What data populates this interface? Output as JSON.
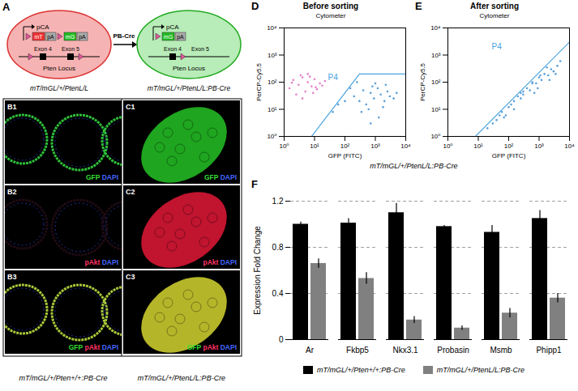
{
  "figure": {
    "panel_A": {
      "letter": "A",
      "left": {
        "promoter": "pCA",
        "cassette": [
          "mT",
          "pA"
        ],
        "reporter": [
          "mG",
          "pA"
        ],
        "exons": [
          "Exon 4",
          "Exon 5"
        ],
        "locus": "Pten Locus",
        "caption": "mT/mGL/+/PtenL/L"
      },
      "arrow": "PB-Cre",
      "right": {
        "promoter": "pCA",
        "reporter": [
          "mG",
          "pA"
        ],
        "exons": [
          "Exon 4",
          "Exon 5"
        ],
        "locus": "Pten Locus",
        "caption": "mT/mGL/+/PtenL/L:PB-Cre"
      }
    },
    "images": [
      {
        "letter": "B1",
        "labels": [
          {
            "text": "GFP",
            "color": "#33dd33"
          },
          {
            "text": "DAPI",
            "color": "#4466ff"
          }
        ]
      },
      {
        "letter": "B2",
        "labels": [
          {
            "text": "pAkt",
            "color": "#ff3366"
          },
          {
            "text": "DAPI",
            "color": "#4466ff"
          }
        ]
      },
      {
        "letter": "B3",
        "labels": [
          {
            "text": "GFP",
            "color": "#33dd33"
          },
          {
            "text": "pAkt",
            "color": "#ff3366"
          },
          {
            "text": "DAPI",
            "color": "#4466ff"
          }
        ]
      },
      {
        "letter": "C1",
        "labels": [
          {
            "text": "GFP",
            "color": "#33dd33"
          },
          {
            "text": "DAPI",
            "color": "#4466ff"
          }
        ]
      },
      {
        "letter": "C2",
        "labels": [
          {
            "text": "pAkt",
            "color": "#ff3366"
          },
          {
            "text": "DAPI",
            "color": "#4466ff"
          }
        ]
      },
      {
        "letter": "C3",
        "labels": [
          {
            "text": "GFP",
            "color": "#33dd33"
          },
          {
            "text": "pAkt",
            "color": "#ff3366"
          },
          {
            "text": "DAPI",
            "color": "#4466ff"
          }
        ]
      }
    ],
    "captions": {
      "B": "mT/mGL/+/Pten+/+:PB-Cre",
      "C": "mT/mGL/+/PtenL/L:PB-Cre",
      "DE": "mT/mGL/+/PtenL/L:PB-Cre"
    }
  },
  "chart_data": [
    {
      "type": "scatter",
      "panel": "D",
      "title": "Before sorting",
      "subtitle": "Cytometer",
      "x_label": "GFP (FITC)",
      "y_label": "PerCP-Cy5.5",
      "log": true,
      "xlim": [
        1,
        10000
      ],
      "ylim": [
        1,
        10000
      ],
      "xticks": [
        {
          "value": 1,
          "label": "10⁰"
        },
        {
          "value": 10,
          "label": "10¹"
        },
        {
          "value": 100,
          "label": "10²"
        },
        {
          "value": 1000,
          "label": "10³"
        },
        {
          "value": 10000,
          "label": "10⁴"
        }
      ],
      "yticks": [
        {
          "value": 1,
          "label": "10⁰"
        },
        {
          "value": 10,
          "label": "10¹"
        },
        {
          "value": 100,
          "label": "10²"
        },
        {
          "value": 1000,
          "label": "10³"
        },
        {
          "value": 10000,
          "label": "10⁴"
        }
      ],
      "series": [
        {
          "color": "#e57fc9",
          "x": [
            1.5,
            2,
            3,
            4,
            5,
            6,
            8,
            10,
            12,
            15,
            2.5,
            3.5,
            7,
            9,
            18,
            22,
            4,
            6,
            1.8,
            11
          ],
          "y": [
            60,
            120,
            80,
            150,
            45,
            100,
            70,
            130,
            55,
            90,
            35,
            180,
            160,
            40,
            75,
            110,
            25,
            200,
            95,
            65
          ]
        },
        {
          "color": "#5a9fd8",
          "x": [
            200,
            300,
            400,
            500,
            700,
            900,
            1200,
            1500,
            2000,
            2500,
            3000,
            4000,
            350,
            600,
            800,
            1000,
            1800,
            250,
            150,
            100,
            60,
            40,
            5000,
            1300,
            700,
            2200
          ],
          "y": [
            30,
            20,
            50,
            15,
            40,
            25,
            60,
            35,
            20,
            45,
            30,
            25,
            8,
            10,
            70,
            90,
            12,
            100,
            60,
            20,
            15,
            8,
            40,
            5,
            3,
            80
          ]
        }
      ],
      "gate": {
        "label": "P4",
        "color": "#4aa3df",
        "label_at": [
          40,
          150
        ],
        "x": [
          8,
          300,
          10000
        ],
        "y": [
          1,
          200,
          200
        ]
      }
    },
    {
      "type": "scatter",
      "panel": "E",
      "title": "After sorting",
      "subtitle": "Cytometer",
      "x_label": "GFP (FITC)",
      "y_label": "PerCP-Cy5.5",
      "log": true,
      "xlim": [
        1,
        10000
      ],
      "ylim": [
        1,
        10000
      ],
      "xticks": [
        {
          "value": 1,
          "label": "10⁰"
        },
        {
          "value": 10,
          "label": "10¹"
        },
        {
          "value": 100,
          "label": "10²"
        },
        {
          "value": 1000,
          "label": "10³"
        },
        {
          "value": 10000,
          "label": "10⁴"
        }
      ],
      "yticks": [
        {
          "value": 1,
          "label": "10⁰"
        },
        {
          "value": 10,
          "label": "10¹"
        },
        {
          "value": 100,
          "label": "10²"
        },
        {
          "value": 1000,
          "label": "10³"
        },
        {
          "value": 10000,
          "label": "10⁴"
        }
      ],
      "series": [
        {
          "color": "#5a9fd8",
          "x": [
            20,
            30,
            40,
            50,
            60,
            70,
            80,
            100,
            120,
            150,
            150,
            200,
            250,
            250,
            300,
            300,
            400,
            500,
            600,
            600,
            700,
            800,
            900,
            1000,
            1100,
            1200,
            1500,
            1800,
            2000,
            2200,
            2500,
            3000,
            3500,
            4000,
            5000
          ],
          "y": [
            2,
            3,
            4,
            6,
            8,
            5,
            6,
            12,
            15,
            20,
            10,
            30,
            40,
            25,
            35,
            45,
            60,
            50,
            100,
            90,
            40,
            90,
            60,
            150,
            180,
            120,
            200,
            350,
            180,
            120,
            300,
            250,
            200,
            400,
            600
          ]
        }
      ],
      "gate": {
        "label": "P4",
        "color": "#4aa3df",
        "label_at": [
          40,
          2000
        ],
        "x": [
          8,
          10000
        ],
        "y": [
          1,
          3000
        ]
      }
    },
    {
      "type": "bar",
      "panel": "F",
      "y_label": "Expression Fold Change",
      "categories": [
        "Ar",
        "Fkbp5",
        "Nkx3.1",
        "Probasin",
        "Msmb",
        "Phipp1"
      ],
      "ylim": [
        0,
        1.2
      ],
      "yticks": [
        0,
        0.4,
        0.8,
        1.2
      ],
      "grid": true,
      "legend": "bottom",
      "series": [
        {
          "name": "mT/mGL/+/Pten+/+:PB-Cre",
          "color": "#000000",
          "values": [
            1.0,
            1.01,
            1.1,
            0.98,
            0.93,
            1.05
          ],
          "errors": [
            0.02,
            0.04,
            0.08,
            0.01,
            0.06,
            0.07
          ]
        },
        {
          "name": "mT/mGL/+/PtenL/L:PB-Cre",
          "color": "#808080",
          "values": [
            0.66,
            0.53,
            0.17,
            0.1,
            0.23,
            0.36
          ],
          "errors": [
            0.04,
            0.05,
            0.03,
            0.02,
            0.04,
            0.04
          ]
        }
      ]
    }
  ]
}
